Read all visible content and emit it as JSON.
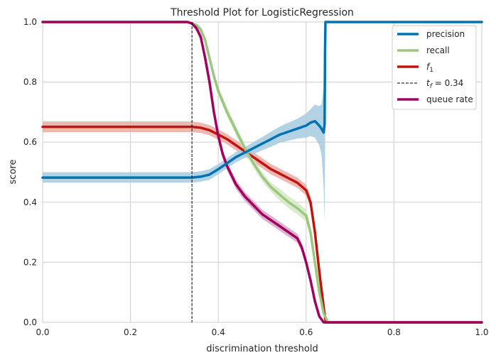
{
  "chart_data": {
    "type": "line",
    "title": "Threshold Plot for LogisticRegression",
    "xlabel": "discrimination threshold",
    "ylabel": "score",
    "xlim": [
      0,
      1
    ],
    "ylim": [
      0,
      1
    ],
    "xticks": [
      "0.0",
      "0.2",
      "0.4",
      "0.6",
      "0.8",
      "1.0"
    ],
    "yticks": [
      "0.0",
      "0.2",
      "0.4",
      "0.6",
      "0.8",
      "1.0"
    ],
    "grid": true,
    "legend_position": "top-right",
    "threshold": {
      "value": 0.34,
      "label_base": "t",
      "label_sub": "f",
      "label_rest": " = 0.34",
      "color": "#000000"
    },
    "series": [
      {
        "name": "precision",
        "color": "#0072b2",
        "band_color": "#a6cbe0",
        "points": [
          [
            0.0,
            0.482
          ],
          [
            0.34,
            0.482
          ],
          [
            0.36,
            0.485
          ],
          [
            0.38,
            0.492
          ],
          [
            0.4,
            0.51
          ],
          [
            0.42,
            0.53
          ],
          [
            0.44,
            0.55
          ],
          [
            0.46,
            0.565
          ],
          [
            0.48,
            0.58
          ],
          [
            0.5,
            0.595
          ],
          [
            0.52,
            0.61
          ],
          [
            0.54,
            0.625
          ],
          [
            0.56,
            0.635
          ],
          [
            0.58,
            0.645
          ],
          [
            0.6,
            0.655
          ],
          [
            0.61,
            0.665
          ],
          [
            0.62,
            0.67
          ],
          [
            0.63,
            0.655
          ],
          [
            0.635,
            0.645
          ],
          [
            0.64,
            0.632
          ],
          [
            0.642,
            0.66
          ],
          [
            0.643,
            0.9
          ],
          [
            0.644,
            1.0
          ],
          [
            1.0,
            1.0
          ]
        ],
        "band": [
          [
            0.0,
            0.465,
            0.5
          ],
          [
            0.34,
            0.465,
            0.5
          ],
          [
            0.36,
            0.468,
            0.503
          ],
          [
            0.38,
            0.475,
            0.51
          ],
          [
            0.4,
            0.493,
            0.527
          ],
          [
            0.42,
            0.513,
            0.547
          ],
          [
            0.44,
            0.533,
            0.567
          ],
          [
            0.46,
            0.547,
            0.583
          ],
          [
            0.48,
            0.56,
            0.6
          ],
          [
            0.5,
            0.573,
            0.617
          ],
          [
            0.52,
            0.585,
            0.635
          ],
          [
            0.54,
            0.598,
            0.652
          ],
          [
            0.56,
            0.605,
            0.665
          ],
          [
            0.58,
            0.612,
            0.678
          ],
          [
            0.6,
            0.615,
            0.695
          ],
          [
            0.61,
            0.62,
            0.71
          ],
          [
            0.62,
            0.615,
            0.725
          ],
          [
            0.63,
            0.59,
            0.72
          ],
          [
            0.635,
            0.56,
            0.725
          ],
          [
            0.64,
            0.45,
            0.78
          ],
          [
            0.642,
            0.33,
            0.85
          ],
          [
            0.643,
            0.5,
            1.0
          ],
          [
            0.644,
            1.0,
            1.0
          ],
          [
            1.0,
            1.0,
            1.0
          ]
        ]
      },
      {
        "name": "recall",
        "color": "#9bc77e",
        "band_color": "#d3e8c5",
        "points": [
          [
            0.0,
            1.0
          ],
          [
            0.33,
            1.0
          ],
          [
            0.35,
            0.99
          ],
          [
            0.36,
            0.975
          ],
          [
            0.37,
            0.94
          ],
          [
            0.38,
            0.88
          ],
          [
            0.39,
            0.82
          ],
          [
            0.4,
            0.77
          ],
          [
            0.42,
            0.7
          ],
          [
            0.44,
            0.64
          ],
          [
            0.46,
            0.58
          ],
          [
            0.48,
            0.53
          ],
          [
            0.5,
            0.485
          ],
          [
            0.52,
            0.45
          ],
          [
            0.54,
            0.425
          ],
          [
            0.56,
            0.4
          ],
          [
            0.58,
            0.38
          ],
          [
            0.6,
            0.355
          ],
          [
            0.61,
            0.3
          ],
          [
            0.62,
            0.2
          ],
          [
            0.63,
            0.1
          ],
          [
            0.64,
            0.03
          ],
          [
            0.65,
            0.0
          ],
          [
            1.0,
            0.0
          ]
        ],
        "band": [
          [
            0.0,
            1.0,
            1.0
          ],
          [
            0.33,
            1.0,
            1.0
          ],
          [
            0.35,
            0.985,
            0.995
          ],
          [
            0.36,
            0.965,
            0.985
          ],
          [
            0.37,
            0.928,
            0.952
          ],
          [
            0.38,
            0.866,
            0.894
          ],
          [
            0.39,
            0.805,
            0.835
          ],
          [
            0.4,
            0.755,
            0.785
          ],
          [
            0.42,
            0.685,
            0.715
          ],
          [
            0.44,
            0.625,
            0.655
          ],
          [
            0.46,
            0.565,
            0.595
          ],
          [
            0.48,
            0.515,
            0.545
          ],
          [
            0.5,
            0.47,
            0.5
          ],
          [
            0.52,
            0.435,
            0.465
          ],
          [
            0.54,
            0.405,
            0.445
          ],
          [
            0.56,
            0.38,
            0.42
          ],
          [
            0.58,
            0.36,
            0.4
          ],
          [
            0.6,
            0.335,
            0.375
          ],
          [
            0.61,
            0.28,
            0.32
          ],
          [
            0.62,
            0.18,
            0.22
          ],
          [
            0.63,
            0.085,
            0.115
          ],
          [
            0.64,
            0.02,
            0.04
          ],
          [
            0.65,
            0.0,
            0.0
          ],
          [
            1.0,
            0.0,
            0.0
          ]
        ]
      },
      {
        "name": "f1",
        "label_base": "f",
        "label_sub": "1",
        "color": "#c0150e",
        "band_color": "#ebaaa5",
        "points": [
          [
            0.0,
            0.651
          ],
          [
            0.34,
            0.651
          ],
          [
            0.36,
            0.648
          ],
          [
            0.38,
            0.64
          ],
          [
            0.4,
            0.625
          ],
          [
            0.42,
            0.61
          ],
          [
            0.44,
            0.59
          ],
          [
            0.46,
            0.57
          ],
          [
            0.48,
            0.55
          ],
          [
            0.5,
            0.53
          ],
          [
            0.52,
            0.51
          ],
          [
            0.54,
            0.495
          ],
          [
            0.56,
            0.48
          ],
          [
            0.58,
            0.465
          ],
          [
            0.6,
            0.44
          ],
          [
            0.61,
            0.4
          ],
          [
            0.62,
            0.3
          ],
          [
            0.63,
            0.17
          ],
          [
            0.64,
            0.05
          ],
          [
            0.645,
            0.0
          ],
          [
            1.0,
            0.0
          ]
        ],
        "band": [
          [
            0.0,
            0.633,
            0.669
          ],
          [
            0.34,
            0.633,
            0.669
          ],
          [
            0.36,
            0.631,
            0.665
          ],
          [
            0.38,
            0.623,
            0.657
          ],
          [
            0.4,
            0.608,
            0.642
          ],
          [
            0.42,
            0.593,
            0.627
          ],
          [
            0.44,
            0.573,
            0.607
          ],
          [
            0.46,
            0.553,
            0.587
          ],
          [
            0.48,
            0.533,
            0.567
          ],
          [
            0.5,
            0.513,
            0.547
          ],
          [
            0.52,
            0.493,
            0.527
          ],
          [
            0.54,
            0.478,
            0.512
          ],
          [
            0.56,
            0.463,
            0.497
          ],
          [
            0.58,
            0.448,
            0.482
          ],
          [
            0.6,
            0.422,
            0.458
          ],
          [
            0.61,
            0.38,
            0.42
          ],
          [
            0.62,
            0.28,
            0.32
          ],
          [
            0.63,
            0.15,
            0.19
          ],
          [
            0.64,
            0.035,
            0.065
          ],
          [
            0.645,
            0.0,
            0.0
          ],
          [
            1.0,
            0.0,
            0.0
          ]
        ]
      },
      {
        "name": "queue rate",
        "color": "#a0005e",
        "band_color": "#d8a2c4",
        "points": [
          [
            0.0,
            1.0
          ],
          [
            0.33,
            1.0
          ],
          [
            0.34,
            0.995
          ],
          [
            0.35,
            0.98
          ],
          [
            0.36,
            0.95
          ],
          [
            0.37,
            0.88
          ],
          [
            0.38,
            0.8
          ],
          [
            0.39,
            0.7
          ],
          [
            0.4,
            0.62
          ],
          [
            0.41,
            0.56
          ],
          [
            0.42,
            0.52
          ],
          [
            0.44,
            0.46
          ],
          [
            0.46,
            0.42
          ],
          [
            0.48,
            0.39
          ],
          [
            0.5,
            0.36
          ],
          [
            0.52,
            0.34
          ],
          [
            0.54,
            0.32
          ],
          [
            0.56,
            0.3
          ],
          [
            0.58,
            0.28
          ],
          [
            0.59,
            0.25
          ],
          [
            0.6,
            0.2
          ],
          [
            0.61,
            0.14
          ],
          [
            0.62,
            0.07
          ],
          [
            0.63,
            0.02
          ],
          [
            0.64,
            0.0
          ],
          [
            1.0,
            0.0
          ]
        ],
        "band": [
          [
            0.0,
            1.0,
            1.0
          ],
          [
            0.33,
            1.0,
            1.0
          ],
          [
            0.34,
            0.99,
            1.0
          ],
          [
            0.35,
            0.97,
            0.99
          ],
          [
            0.36,
            0.938,
            0.962
          ],
          [
            0.37,
            0.865,
            0.895
          ],
          [
            0.38,
            0.785,
            0.815
          ],
          [
            0.39,
            0.685,
            0.715
          ],
          [
            0.4,
            0.605,
            0.635
          ],
          [
            0.41,
            0.545,
            0.575
          ],
          [
            0.42,
            0.505,
            0.535
          ],
          [
            0.44,
            0.445,
            0.475
          ],
          [
            0.46,
            0.405,
            0.435
          ],
          [
            0.48,
            0.375,
            0.405
          ],
          [
            0.5,
            0.345,
            0.375
          ],
          [
            0.52,
            0.325,
            0.355
          ],
          [
            0.54,
            0.305,
            0.335
          ],
          [
            0.56,
            0.285,
            0.315
          ],
          [
            0.58,
            0.265,
            0.295
          ],
          [
            0.59,
            0.235,
            0.265
          ],
          [
            0.6,
            0.185,
            0.215
          ],
          [
            0.61,
            0.125,
            0.155
          ],
          [
            0.62,
            0.058,
            0.082
          ],
          [
            0.63,
            0.012,
            0.028
          ],
          [
            0.64,
            0.0,
            0.0
          ],
          [
            1.0,
            0.0,
            0.0
          ]
        ]
      }
    ]
  }
}
